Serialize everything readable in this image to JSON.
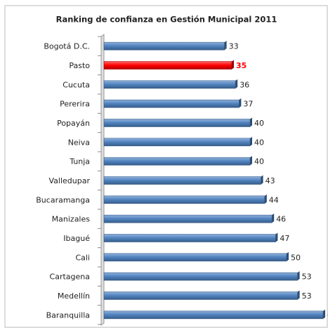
{
  "chart_data": {
    "type": "bar",
    "orientation": "horizontal",
    "title": "Ranking de confianza en Gestión Municipal 2011",
    "categories": [
      "Bogotá D.C.",
      "Pasto",
      "Cucuta",
      "Pererira",
      "Popayán",
      "Neiva",
      "Tunja",
      "Valledupar",
      "Bucaramanga",
      "Manizales",
      "Ibagué",
      "Cali",
      "Cartagena",
      "Medellín",
      "Baranquilla"
    ],
    "values": [
      33,
      35,
      36,
      37,
      40,
      40,
      40,
      43,
      44,
      46,
      47,
      50,
      53,
      53,
      60
    ],
    "colors": [
      "#4f81bd",
      "#ff0000",
      "#4f81bd",
      "#4f81bd",
      "#4f81bd",
      "#4f81bd",
      "#4f81bd",
      "#4f81bd",
      "#4f81bd",
      "#4f81bd",
      "#4f81bd",
      "#4f81bd",
      "#4f81bd",
      "#4f81bd",
      "#4f81bd"
    ],
    "xlim": [
      0,
      60
    ]
  }
}
